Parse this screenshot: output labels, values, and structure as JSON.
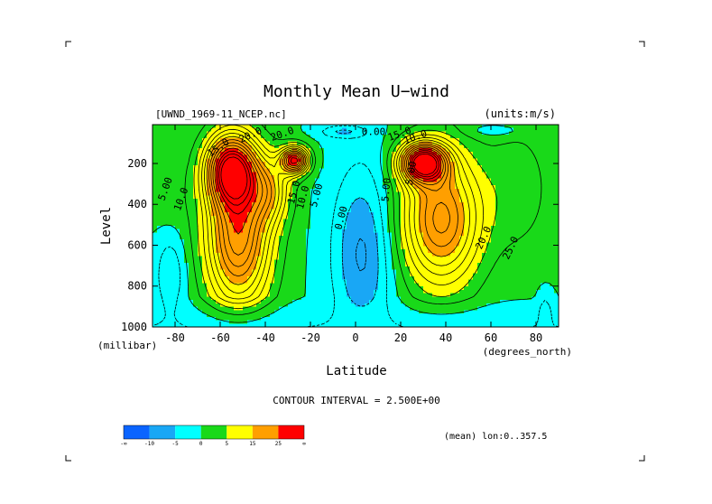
{
  "chart_data": {
    "type": "heatmap",
    "title": "Monthly Mean U−wind",
    "subtitle_left": "[UWND_1969-11_NCEP.nc]",
    "subtitle_right": "(units:m/s)",
    "xlabel": "Latitude",
    "ylabel": "Level",
    "x_units": "(degrees_north)",
    "y_units": "(millibar)",
    "xlim": [
      -90,
      90
    ],
    "ylim": [
      1000,
      10
    ],
    "y_inverted": true,
    "x_ticks": [
      -80,
      -60,
      -40,
      -20,
      0,
      20,
      40,
      60,
      80
    ],
    "x_tick_labels": [
      "-80",
      "-60",
      "-40",
      "-20",
      "0",
      "20",
      "40",
      "60",
      "80"
    ],
    "y_ticks": [
      200,
      400,
      600,
      800,
      1000
    ],
    "y_tick_labels": [
      "200",
      "400",
      "600",
      "800",
      "1000"
    ],
    "contour_interval_text": "CONTOUR INTERVAL = 2.500E+00",
    "mean_note": "(mean) lon:0..357.5",
    "colorbar": {
      "bins": [
        {
          "lo": null,
          "hi": -10,
          "color": "#0a64ff"
        },
        {
          "lo": -10,
          "hi": -5,
          "color": "#19a7f5"
        },
        {
          "lo": -5,
          "hi": 0,
          "color": "#00ffff"
        },
        {
          "lo": 0,
          "hi": 5,
          "color": "#19d919"
        },
        {
          "lo": 5,
          "hi": 15,
          "color": "#ffff00"
        },
        {
          "lo": 15,
          "hi": 25,
          "color": "#ff9f00"
        },
        {
          "lo": 25,
          "hi": null,
          "color": "#ff0000"
        }
      ],
      "tick_labels": [
        "-∞",
        "-10",
        "-5",
        "0",
        "5",
        "15",
        "25",
        "∞"
      ]
    },
    "contour_labels": [
      "5.00",
      "10.0",
      "15.0",
      "20.0",
      "20.0",
      "15.0",
      "10.0",
      "5.00",
      "0.00",
      "5.00",
      "0.00",
      "15.0",
      "10.0",
      "5.00",
      "20.0",
      "25.0"
    ],
    "features": {
      "southern_jet": {
        "lat": -55,
        "level": 230,
        "peak": 30
      },
      "southern_jet_secondary": {
        "lat": -27,
        "level": 190,
        "peak": 28
      },
      "northern_jet": {
        "lat": 30,
        "level": 200,
        "peak": 32
      },
      "tropical_easterlies": {
        "lat": 3,
        "level": 650,
        "min": -8
      }
    }
  }
}
